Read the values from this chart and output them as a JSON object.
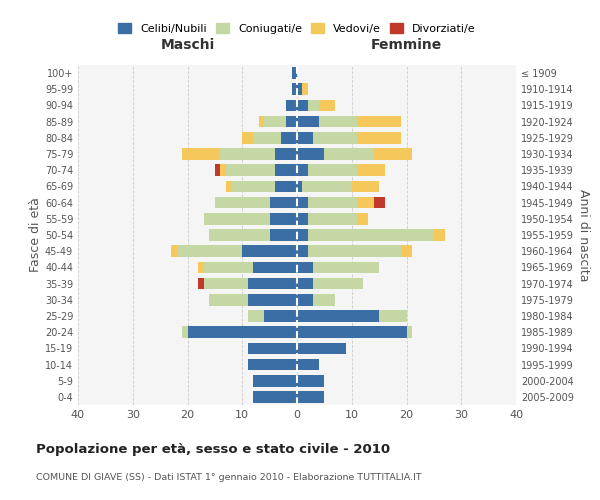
{
  "age_groups": [
    "0-4",
    "5-9",
    "10-14",
    "15-19",
    "20-24",
    "25-29",
    "30-34",
    "35-39",
    "40-44",
    "45-49",
    "50-54",
    "55-59",
    "60-64",
    "65-69",
    "70-74",
    "75-79",
    "80-84",
    "85-89",
    "90-94",
    "95-99",
    "100+"
  ],
  "birth_years": [
    "2005-2009",
    "2000-2004",
    "1995-1999",
    "1990-1994",
    "1985-1989",
    "1980-1984",
    "1975-1979",
    "1970-1974",
    "1965-1969",
    "1960-1964",
    "1955-1959",
    "1950-1954",
    "1945-1949",
    "1940-1944",
    "1935-1939",
    "1930-1934",
    "1925-1929",
    "1920-1924",
    "1915-1919",
    "1910-1914",
    "≤ 1909"
  ],
  "male": {
    "celibi": [
      8,
      8,
      9,
      9,
      20,
      6,
      9,
      9,
      8,
      10,
      5,
      5,
      5,
      4,
      4,
      4,
      3,
      2,
      2,
      1,
      1
    ],
    "coniugati": [
      0,
      0,
      0,
      0,
      1,
      3,
      7,
      8,
      9,
      12,
      11,
      12,
      10,
      8,
      9,
      10,
      5,
      4,
      0,
      0,
      0
    ],
    "vedovi": [
      0,
      0,
      0,
      0,
      0,
      0,
      0,
      0,
      1,
      1,
      0,
      0,
      0,
      1,
      1,
      7,
      2,
      1,
      0,
      0,
      0
    ],
    "divorziati": [
      0,
      0,
      0,
      0,
      0,
      0,
      0,
      1,
      0,
      0,
      0,
      0,
      0,
      0,
      1,
      0,
      0,
      0,
      0,
      0,
      0
    ]
  },
  "female": {
    "nubili": [
      5,
      5,
      4,
      9,
      20,
      15,
      3,
      3,
      3,
      2,
      2,
      2,
      2,
      1,
      2,
      5,
      3,
      4,
      2,
      1,
      0
    ],
    "coniugate": [
      0,
      0,
      0,
      0,
      1,
      5,
      4,
      9,
      12,
      17,
      23,
      9,
      9,
      9,
      9,
      9,
      8,
      7,
      2,
      0,
      0
    ],
    "vedove": [
      0,
      0,
      0,
      0,
      0,
      0,
      0,
      0,
      0,
      2,
      2,
      2,
      3,
      5,
      5,
      7,
      8,
      8,
      3,
      1,
      0
    ],
    "divorziate": [
      0,
      0,
      0,
      0,
      0,
      0,
      0,
      0,
      0,
      0,
      0,
      0,
      2,
      0,
      0,
      0,
      0,
      0,
      0,
      0,
      0
    ]
  },
  "colors": {
    "celibi": "#3A6EA5",
    "coniugati": "#C5D8A4",
    "vedovi": "#F5C85C",
    "divorziati": "#C0392B"
  },
  "xlim": 40,
  "title": "Popolazione per età, sesso e stato civile - 2010",
  "subtitle": "COMUNE DI GIAVE (SS) - Dati ISTAT 1° gennaio 2010 - Elaborazione TUTTITALIA.IT",
  "ylabel_left": "Fasce di età",
  "ylabel_right": "Anni di nascita",
  "xlabel_left": "Maschi",
  "xlabel_right": "Femmine",
  "legend_labels": [
    "Celibi/Nubili",
    "Coniugati/e",
    "Vedovi/e",
    "Divorziati/e"
  ],
  "background_color": "#f5f5f5"
}
